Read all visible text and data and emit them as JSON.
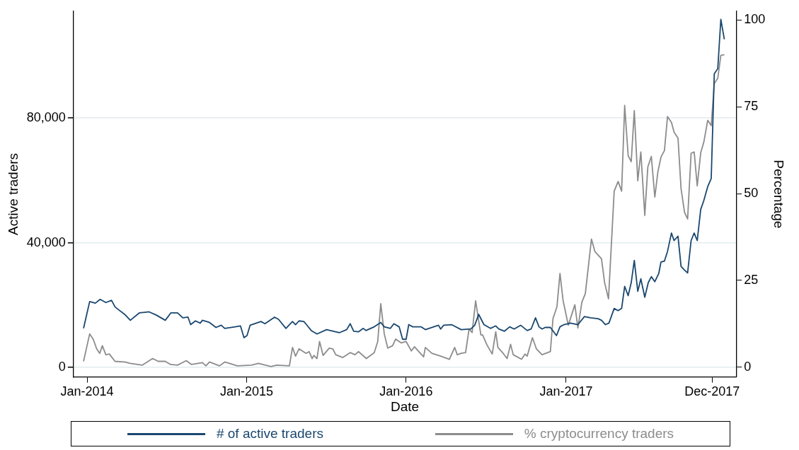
{
  "chart_data": {
    "type": "line",
    "xlabel": "Date",
    "ylabel": "Active traders",
    "y2label": "Percentage",
    "xlim": [
      "2013-12-01",
      "2018-01-25"
    ],
    "xticks": [
      {
        "value": "2014-01-01",
        "label": "Jan-2014"
      },
      {
        "value": "2015-01-01",
        "label": "Jan-2015"
      },
      {
        "value": "2016-01-01",
        "label": "Jan-2016"
      },
      {
        "value": "2017-01-01",
        "label": "Jan-2017"
      },
      {
        "value": "2017-12-01",
        "label": "Dec-2017"
      }
    ],
    "ylim": [
      -3100,
      114300
    ],
    "yticks": [
      {
        "value": 0,
        "label": "0"
      },
      {
        "value": 40000,
        "label": "40,000"
      },
      {
        "value": 80000,
        "label": "80,000"
      }
    ],
    "y2lim": [
      -2.8,
      102.5
    ],
    "y2ticks": [
      0,
      25,
      50,
      75,
      100
    ],
    "grid": "y",
    "legend": "bottom",
    "marker": "none",
    "line_style": "solid",
    "series": [
      {
        "name": "# of active traders",
        "color": "#1a476f",
        "x": [
          "2013-12-24",
          "2014-01-07",
          "2014-01-20",
          "2014-01-31",
          "2014-02-13",
          "2014-02-26",
          "2014-03-06",
          "2014-03-14",
          "2014-03-28",
          "2014-04-10",
          "2014-05-01",
          "2014-05-23",
          "2014-06-08",
          "2014-06-29",
          "2014-07-12",
          "2014-07-27",
          "2014-08-08",
          "2014-08-20",
          "2014-08-26",
          "2014-09-06",
          "2014-09-17",
          "2014-09-22",
          "2014-10-08",
          "2014-10-23",
          "2014-11-04",
          "2014-11-12",
          "2014-12-06",
          "2014-12-18",
          "2014-12-26",
          "2015-01-02",
          "2015-01-09",
          "2015-02-03",
          "2015-02-12",
          "2015-03-06",
          "2015-03-15",
          "2015-04-01",
          "2015-04-16",
          "2015-04-23",
          "2015-05-01",
          "2015-05-12",
          "2015-05-18",
          "2015-05-29",
          "2015-06-11",
          "2015-07-03",
          "2015-08-01",
          "2015-08-18",
          "2015-08-26",
          "2015-09-03",
          "2015-09-14",
          "2015-09-25",
          "2015-10-01",
          "2015-10-20",
          "2015-11-04",
          "2015-11-12",
          "2015-11-26",
          "2015-12-04",
          "2015-12-16",
          "2015-12-24",
          "2016-01-01",
          "2016-01-07",
          "2016-01-16",
          "2016-01-31",
          "2016-02-04",
          "2016-02-14",
          "2016-03-15",
          "2016-03-20",
          "2016-03-27",
          "2016-04-14",
          "2016-05-06",
          "2016-05-28",
          "2016-06-06",
          "2016-06-15",
          "2016-06-27",
          "2016-07-12",
          "2016-07-24",
          "2016-07-31",
          "2016-08-13",
          "2016-08-25",
          "2016-09-04",
          "2016-09-19",
          "2016-10-04",
          "2016-10-13",
          "2016-10-23",
          "2016-10-31",
          "2016-11-07",
          "2016-11-14",
          "2016-11-26",
          "2016-12-10",
          "2016-12-18",
          "2016-12-27",
          "2017-01-11",
          "2017-01-28",
          "2017-02-12",
          "2017-02-26",
          "2017-03-15",
          "2017-03-23",
          "2017-04-01",
          "2017-04-09",
          "2017-04-21",
          "2017-04-30",
          "2017-05-08",
          "2017-05-15",
          "2017-05-23",
          "2017-05-30",
          "2017-06-06",
          "2017-06-14",
          "2017-06-21",
          "2017-06-30",
          "2017-07-08",
          "2017-07-15",
          "2017-07-23",
          "2017-08-01",
          "2017-08-06",
          "2017-08-14",
          "2017-08-21",
          "2017-08-30",
          "2017-09-05",
          "2017-09-14",
          "2017-09-21",
          "2017-09-29",
          "2017-10-06",
          "2017-10-14",
          "2017-10-21",
          "2017-10-28",
          "2017-11-05",
          "2017-11-12",
          "2017-11-21",
          "2017-11-29",
          "2017-12-06",
          "2017-12-14",
          "2017-12-21",
          "2017-12-29"
        ],
        "values": [
          12500,
          21100,
          20600,
          21800,
          20800,
          21500,
          19400,
          18500,
          17000,
          15100,
          17500,
          17800,
          16800,
          15100,
          17500,
          17500,
          15900,
          16100,
          13700,
          14900,
          14200,
          15100,
          14400,
          12800,
          13500,
          12500,
          13000,
          13300,
          9500,
          10200,
          13500,
          14700,
          14000,
          16100,
          15400,
          12500,
          14700,
          13700,
          14900,
          14700,
          13700,
          11800,
          10700,
          12100,
          11100,
          12100,
          14000,
          11600,
          11400,
          12500,
          11800,
          13000,
          14400,
          13000,
          12500,
          14000,
          13000,
          9000,
          9000,
          13700,
          13000,
          13000,
          13000,
          12100,
          13500,
          12300,
          13500,
          13700,
          12100,
          12300,
          13500,
          17000,
          13700,
          12500,
          13300,
          12300,
          11600,
          13000,
          12300,
          13500,
          11800,
          12300,
          15900,
          13000,
          12300,
          12800,
          12800,
          10200,
          13000,
          13700,
          14200,
          13700,
          16300,
          15900,
          15600,
          15100,
          13700,
          14200,
          18900,
          18200,
          18900,
          26000,
          23000,
          27200,
          34300,
          24400,
          28400,
          22500,
          27200,
          29100,
          27500,
          30100,
          33800,
          34100,
          37200,
          43100,
          40700,
          42100,
          32400,
          31200,
          30300,
          40700,
          43100,
          40700,
          50700,
          53500,
          58000,
          60600,
          94200,
          95900,
          111700,
          105300
        ]
      },
      {
        "name": "% cryptocurrency traders",
        "color": "#8c8c8c",
        "axis": "y2",
        "x": [
          "2013-12-24",
          "2014-01-07",
          "2014-01-15",
          "2014-01-23",
          "2014-01-30",
          "2014-02-05",
          "2014-02-13",
          "2014-02-21",
          "2014-03-06",
          "2014-03-28",
          "2014-04-10",
          "2014-05-07",
          "2014-05-31",
          "2014-06-13",
          "2014-06-29",
          "2014-07-11",
          "2014-07-27",
          "2014-08-16",
          "2014-08-28",
          "2014-09-22",
          "2014-09-30",
          "2014-10-08",
          "2014-10-31",
          "2014-11-12",
          "2014-12-11",
          "2015-01-12",
          "2015-01-28",
          "2015-02-26",
          "2015-03-11",
          "2015-04-09",
          "2015-04-16",
          "2015-04-23",
          "2015-05-01",
          "2015-05-17",
          "2015-05-24",
          "2015-05-31",
          "2015-06-04",
          "2015-06-11",
          "2015-06-17",
          "2015-06-25",
          "2015-07-09",
          "2015-07-17",
          "2015-07-24",
          "2015-08-09",
          "2015-08-26",
          "2015-09-06",
          "2015-09-14",
          "2015-10-02",
          "2015-10-20",
          "2015-10-28",
          "2015-11-04",
          "2015-11-12",
          "2015-11-20",
          "2015-12-01",
          "2015-12-08",
          "2015-12-21",
          "2016-01-01",
          "2016-01-13",
          "2016-01-20",
          "2016-02-10",
          "2016-02-14",
          "2016-02-29",
          "2016-03-20",
          "2016-04-09",
          "2016-04-21",
          "2016-04-27",
          "2016-05-06",
          "2016-05-16",
          "2016-05-24",
          "2016-05-31",
          "2016-06-08",
          "2016-06-20",
          "2016-06-24",
          "2016-07-04",
          "2016-07-16",
          "2016-07-24",
          "2016-07-29",
          "2016-08-10",
          "2016-08-19",
          "2016-08-27",
          "2016-09-02",
          "2016-09-21",
          "2016-09-29",
          "2016-10-04",
          "2016-10-16",
          "2016-10-25",
          "2016-11-07",
          "2016-11-26",
          "2016-12-02",
          "2016-12-11",
          "2016-12-18",
          "2016-12-25",
          "2017-01-06",
          "2017-01-21",
          "2017-01-28",
          "2017-02-06",
          "2017-02-14",
          "2017-02-28",
          "2017-03-08",
          "2017-03-23",
          "2017-03-30",
          "2017-04-08",
          "2017-04-21",
          "2017-04-30",
          "2017-05-08",
          "2017-05-15",
          "2017-05-23",
          "2017-05-30",
          "2017-06-06",
          "2017-06-14",
          "2017-06-21",
          "2017-06-30",
          "2017-07-07",
          "2017-07-15",
          "2017-07-23",
          "2017-07-30",
          "2017-08-06",
          "2017-08-14",
          "2017-08-21",
          "2017-08-30",
          "2017-09-05",
          "2017-09-14",
          "2017-09-21",
          "2017-09-29",
          "2017-10-06",
          "2017-10-14",
          "2017-10-21",
          "2017-10-28",
          "2017-11-05",
          "2017-11-12",
          "2017-11-21",
          "2017-11-29",
          "2017-12-06",
          "2017-12-14",
          "2017-12-21",
          "2017-12-29"
        ],
        "values": [
          1.7,
          9.6,
          8.1,
          5.3,
          4.0,
          6.2,
          3.6,
          3.8,
          1.7,
          1.5,
          1.1,
          0.6,
          2.5,
          1.7,
          1.7,
          0.8,
          0.6,
          1.9,
          0.8,
          1.3,
          0.4,
          1.5,
          0.4,
          1.5,
          0.4,
          0.6,
          1.1,
          0.2,
          0.6,
          0.4,
          5.7,
          3.2,
          5.3,
          4.0,
          4.5,
          2.5,
          3.4,
          2.5,
          7.4,
          3.4,
          5.5,
          5.3,
          3.6,
          2.8,
          4.2,
          3.6,
          4.5,
          2.5,
          4.2,
          7.4,
          18.3,
          9.6,
          5.5,
          6.2,
          8.1,
          7.0,
          7.4,
          4.7,
          5.9,
          3.0,
          5.7,
          4.0,
          3.2,
          2.3,
          5.7,
          3.6,
          4.0,
          4.2,
          11.0,
          10.0,
          19.1,
          9.3,
          9.3,
          6.4,
          3.8,
          10.2,
          5.7,
          4.0,
          2.5,
          6.6,
          3.6,
          2.3,
          3.8,
          3.2,
          8.5,
          5.3,
          3.6,
          4.5,
          14.0,
          17.4,
          27.0,
          19.3,
          12.1,
          18.0,
          11.3,
          18.7,
          21.2,
          36.9,
          33.3,
          31.2,
          24.4,
          19.7,
          50.7,
          53.5,
          50.7,
          75.4,
          60.9,
          59.2,
          73.9,
          53.7,
          62.0,
          43.7,
          57.7,
          60.7,
          49.0,
          56.3,
          60.5,
          62.4,
          72.2,
          70.5,
          67.7,
          66.0,
          51.4,
          44.6,
          42.7,
          61.6,
          62.0,
          52.2,
          61.8,
          64.8,
          71.1,
          69.6,
          81.7,
          83.2,
          89.8,
          90.0
        ]
      }
    ]
  }
}
